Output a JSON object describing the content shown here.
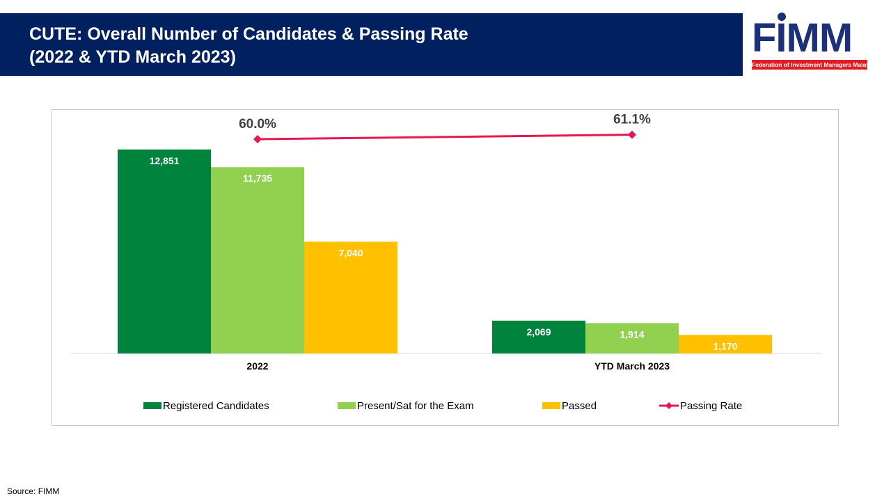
{
  "header": {
    "title_line1": "CUTE: Overall Number of Candidates & Passing Rate",
    "title_line2": "(2022 & YTD March 2023)",
    "bar_color": "#002060"
  },
  "logo": {
    "wordmark": "FIMM",
    "tagline": "Federation of Investment Managers Malaysia"
  },
  "chart_data": {
    "type": "bar",
    "categories": [
      "2022",
      "YTD March 2023"
    ],
    "series": [
      {
        "name": "Registered Candidates",
        "values": [
          12851,
          2069
        ],
        "labels": [
          "12,851",
          "2,069"
        ],
        "color": "#00843d"
      },
      {
        "name": "Present/Sat for the Exam",
        "values": [
          11735,
          1914
        ],
        "labels": [
          "11,735",
          "1,914"
        ],
        "color": "#92d050"
      },
      {
        "name": "Passed",
        "values": [
          7040,
          1170
        ],
        "labels": [
          "7,040",
          "1,170"
        ],
        "color": "#ffc000"
      }
    ],
    "line_series": {
      "name": "Passing Rate",
      "values": [
        60.0,
        61.1
      ],
      "labels": [
        "60.0%",
        "61.1%"
      ],
      "color": "#e8174d"
    },
    "ylim": [
      0,
      14200
    ],
    "legend_position": "bottom",
    "grid": false
  },
  "footer": {
    "source": "Source: FIMM"
  }
}
